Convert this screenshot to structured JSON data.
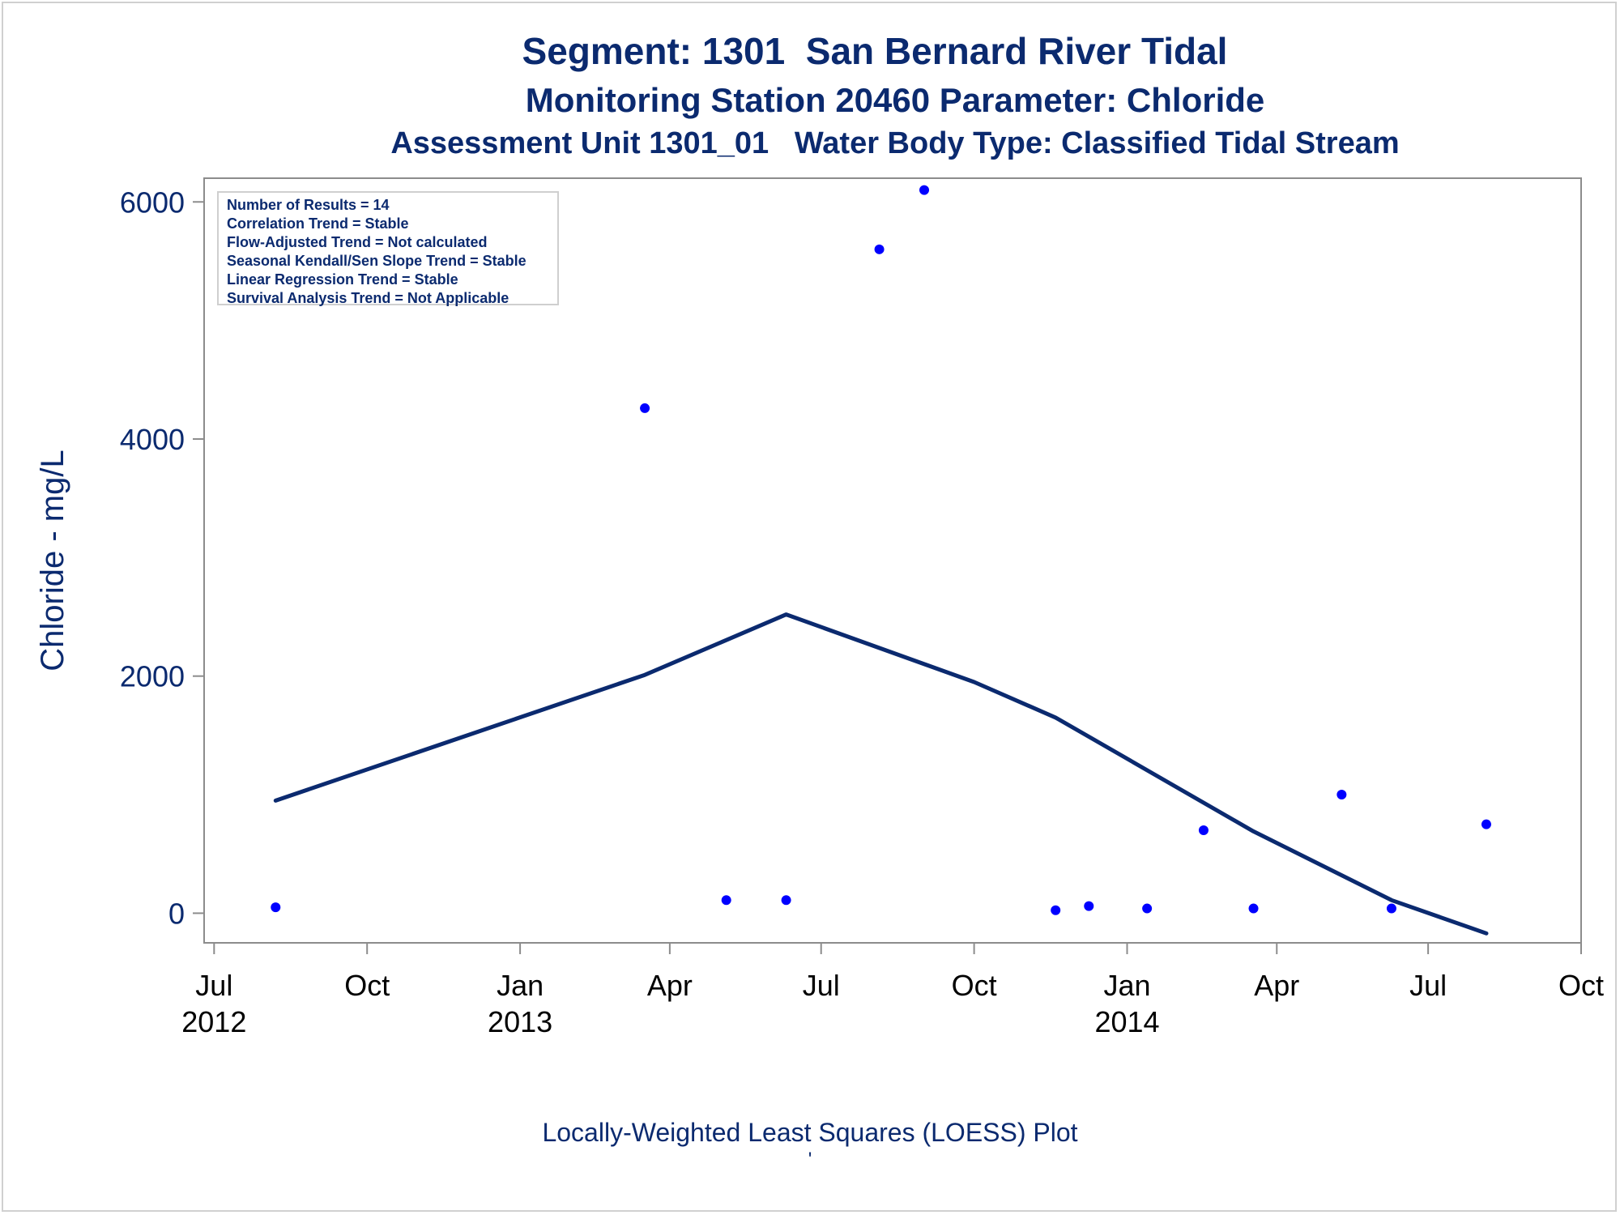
{
  "chart_data": {
    "type": "scatter",
    "title": "Segment: 1301  San Bernard River Tidal",
    "subtitle": "Monitoring Station 20460 Parameter: Chloride",
    "subtitle2": "Assessment Unit 1301_01   Water Body Type: Classified Tidal Stream",
    "ylabel": "Chloride - mg/L",
    "xlabel": "",
    "footnote": "Locally-Weighted Least Squares (LOESS) Plot",
    "footnote2": "'",
    "xlim": [
      "2012-06-25",
      "2014-10-01"
    ],
    "ylim": [
      -250,
      6200
    ],
    "y_ticks": [
      0,
      2000,
      4000,
      6000
    ],
    "x_ticks": [
      {
        "date": "2012-07-01",
        "label": "Jul",
        "year": "2012"
      },
      {
        "date": "2012-10-01",
        "label": "Oct",
        "year": ""
      },
      {
        "date": "2013-01-01",
        "label": "Jan",
        "year": "2013"
      },
      {
        "date": "2013-04-01",
        "label": "Apr",
        "year": ""
      },
      {
        "date": "2013-07-01",
        "label": "Jul",
        "year": ""
      },
      {
        "date": "2013-10-01",
        "label": "Oct",
        "year": ""
      },
      {
        "date": "2014-01-01",
        "label": "Jan",
        "year": "2014"
      },
      {
        "date": "2014-04-01",
        "label": "Apr",
        "year": ""
      },
      {
        "date": "2014-07-01",
        "label": "Jul",
        "year": ""
      },
      {
        "date": "2014-10-01",
        "label": "Oct",
        "year": ""
      }
    ],
    "series": [
      {
        "type": "scatter",
        "color": "#0000ff",
        "points": [
          {
            "x": "2012-08-07",
            "y": 50
          },
          {
            "x": "2013-03-17",
            "y": 4260
          },
          {
            "x": "2013-05-05",
            "y": 110
          },
          {
            "x": "2013-06-10",
            "y": 110
          },
          {
            "x": "2013-08-05",
            "y": 5600
          },
          {
            "x": "2013-09-01",
            "y": 6100
          },
          {
            "x": "2013-11-19",
            "y": 25
          },
          {
            "x": "2013-12-09",
            "y": 60
          },
          {
            "x": "2014-01-13",
            "y": 40
          },
          {
            "x": "2014-02-16",
            "y": 700
          },
          {
            "x": "2014-03-18",
            "y": 40
          },
          {
            "x": "2014-05-10",
            "y": 1000
          },
          {
            "x": "2014-06-09",
            "y": 40
          },
          {
            "x": "2014-08-05",
            "y": 750
          }
        ]
      },
      {
        "type": "line",
        "color": "#0b2a6f",
        "points": [
          {
            "x": "2012-08-07",
            "y": 950
          },
          {
            "x": "2013-03-17",
            "y": 2010
          },
          {
            "x": "2013-06-10",
            "y": 2520
          },
          {
            "x": "2013-10-01",
            "y": 1950
          },
          {
            "x": "2013-11-19",
            "y": 1650
          },
          {
            "x": "2014-03-18",
            "y": 690
          },
          {
            "x": "2014-06-09",
            "y": 110
          },
          {
            "x": "2014-08-05",
            "y": -170
          }
        ]
      }
    ]
  },
  "stats_box": {
    "lines": [
      "Number of Results = 14",
      "Correlation Trend = Stable",
      "Flow-Adjusted Trend = Not calculated",
      "Seasonal Kendall/Sen Slope Trend = Stable",
      "Linear Regression Trend = Stable",
      "Survival Analysis Trend = Not Applicable"
    ]
  },
  "colors": {
    "text": "#0b2a6f",
    "axis": "#8c8c8c",
    "point": "#0000ff",
    "line": "#0b2a6f"
  }
}
